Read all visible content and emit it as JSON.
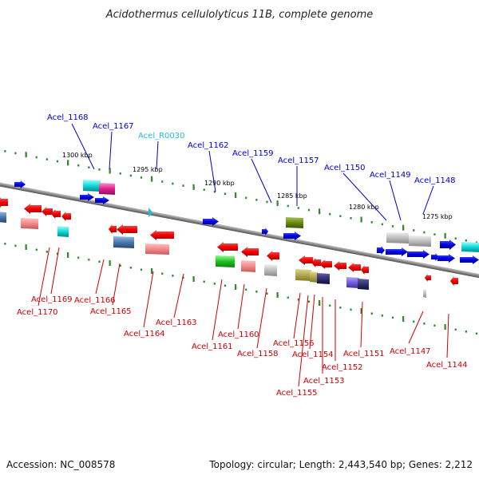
{
  "title": "Acidothermus cellulolyticus 11B, complete genome",
  "footer": {
    "accession": "Accession: NC_008578",
    "topology": "Topology: circular; Length: 2,443,540 bp; Genes: 2,212"
  },
  "colors": {
    "forward_label": "#0000cc",
    "reverse_label": "#cc0000",
    "rna_label": "#22bbdd",
    "backbone": "#8a8a8a",
    "tick": "#2e8b2e"
  },
  "scale_ticks": [
    {
      "label": "1300 kbp"
    },
    {
      "label": "1295 kbp"
    },
    {
      "label": "1290 kbp"
    },
    {
      "label": "1285 kbp"
    },
    {
      "label": "1280 kbp"
    },
    {
      "label": "1275 kbp"
    }
  ],
  "forward_labels": [
    {
      "text": "Acel_1168",
      "kind": "gene"
    },
    {
      "text": "Acel_1167",
      "kind": "gene"
    },
    {
      "text": "Acel_R0030",
      "kind": "rna"
    },
    {
      "text": "Acel_1162",
      "kind": "gene"
    },
    {
      "text": "Acel_1159",
      "kind": "gene"
    },
    {
      "text": "Acel_1157",
      "kind": "gene"
    },
    {
      "text": "Acel_1150",
      "kind": "gene"
    },
    {
      "text": "Acel_1149",
      "kind": "gene"
    },
    {
      "text": "Acel_1148",
      "kind": "gene"
    }
  ],
  "reverse_labels": [
    {
      "text": "Acel_1169"
    },
    {
      "text": "Acel_1170"
    },
    {
      "text": "Acel_1166"
    },
    {
      "text": "Acel_1165"
    },
    {
      "text": "Acel_1164"
    },
    {
      "text": "Acel_1163"
    },
    {
      "text": "Acel_1161"
    },
    {
      "text": "Acel_1160"
    },
    {
      "text": "Acel_1158"
    },
    {
      "text": "Acel_1156"
    },
    {
      "text": "Acel_1154"
    },
    {
      "text": "Acel_1155"
    },
    {
      "text": "Acel_1153"
    },
    {
      "text": "Acel_1152"
    },
    {
      "text": "Acel_1151"
    },
    {
      "text": "Acel_1147"
    },
    {
      "text": "Acel_1144"
    }
  ]
}
